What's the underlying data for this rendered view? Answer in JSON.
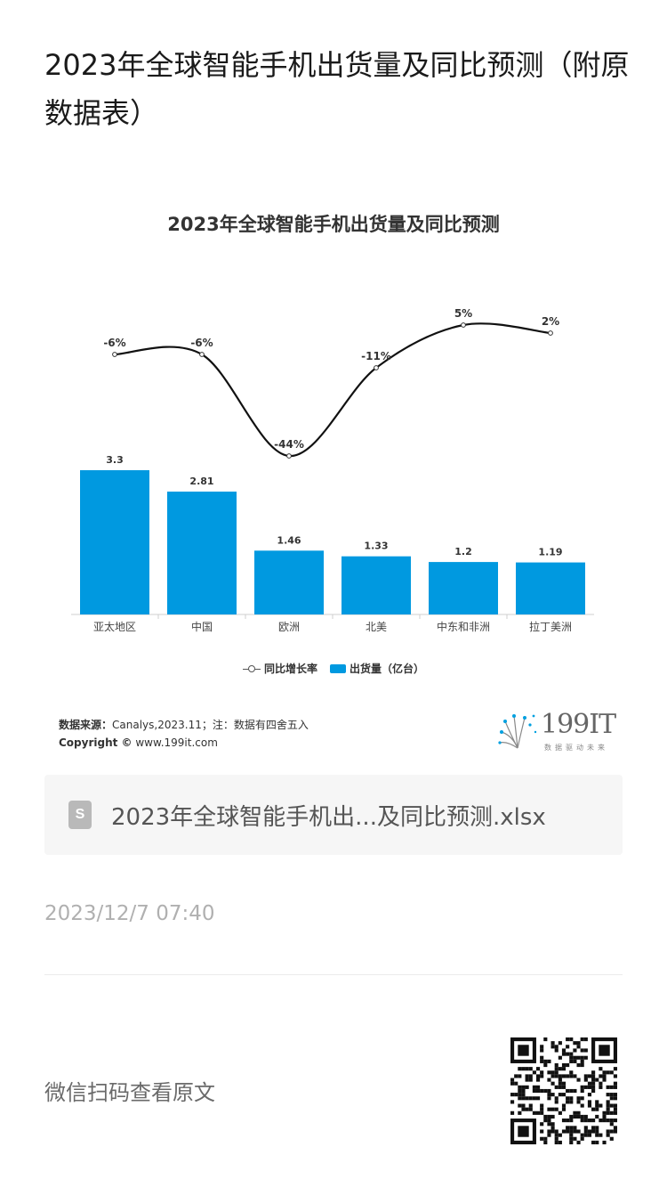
{
  "article": {
    "title": "2023年全球智能手机出货量及同比预测（附原数据表）"
  },
  "chart_data": {
    "type": "bar",
    "title": "2023年全球智能手机出货量及同比预测",
    "categories": [
      "亚太地区",
      "中国",
      "欧洲",
      "北美",
      "中东和非洲",
      "拉丁美洲"
    ],
    "series": [
      {
        "name": "出货量（亿台）",
        "type": "bar",
        "color": "#0099e0",
        "values": [
          3.3,
          2.81,
          1.46,
          1.33,
          1.2,
          1.19
        ],
        "labels": [
          "3.3",
          "2.81",
          "1.46",
          "1.33",
          "1.2",
          "1.19"
        ]
      },
      {
        "name": "同比增长率",
        "type": "line",
        "color": "#111111",
        "values": [
          -6,
          -6,
          -44,
          -11,
          5,
          2
        ],
        "labels": [
          "-6%",
          "-6%",
          "-44%",
          "-11%",
          "5%",
          "2%"
        ]
      }
    ],
    "legend": [
      "同比增长率",
      "出货量（亿台）"
    ],
    "legend_position": "bottom",
    "grid": false
  },
  "source": {
    "label": "数据来源：",
    "text": "Canalys,2023.11；注：数据有四舍五入"
  },
  "copyright": {
    "label": "Copyright ©",
    "text": " www.199it.com"
  },
  "brand": {
    "name": "199IT",
    "slogan": "数据驱动未来"
  },
  "attachment": {
    "icon": "spreadsheet-file-icon",
    "file_name": "2023年全球智能手机出...及同比预测.xlsx"
  },
  "publish_time": "2023/12/7 07:40",
  "qr": {
    "hint": "微信扫码查看原文",
    "icon": "qr-code-icon"
  }
}
